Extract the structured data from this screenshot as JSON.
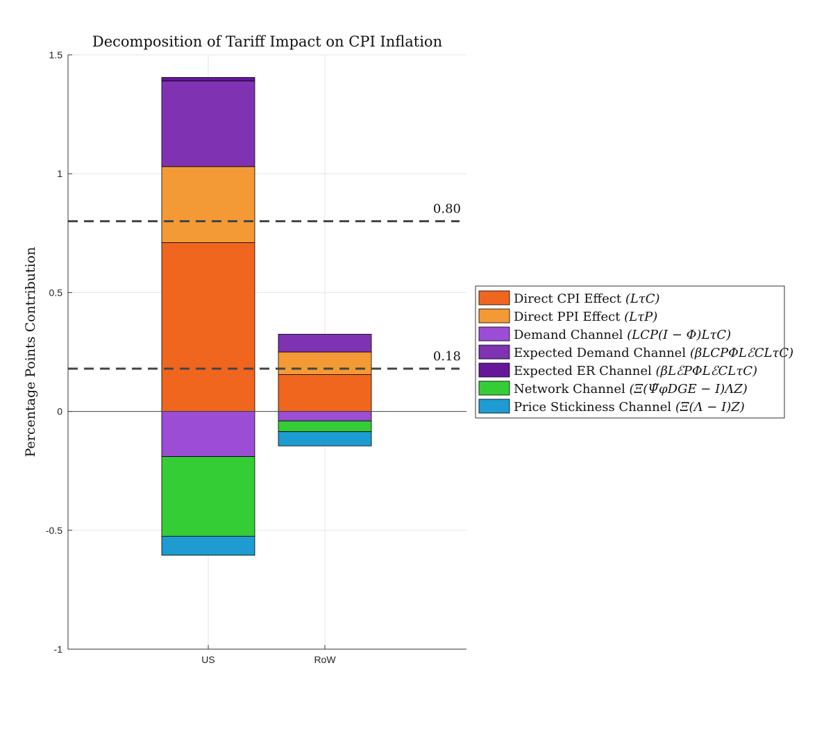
{
  "chart_data": {
    "type": "bar",
    "stacked": true,
    "title": "Decomposition of Tariff Impact on CPI Inflation",
    "xlabel": "",
    "ylabel": "Percentage Points Contribution",
    "categories": [
      "US",
      "RoW"
    ],
    "ylim": [
      -1,
      1.5
    ],
    "yticks": [
      -1,
      -0.5,
      0,
      0.5,
      1,
      1.5
    ],
    "ytick_labels": [
      "-1",
      "-0.5",
      "0",
      "0.5",
      "1",
      "1.5"
    ],
    "grid": true,
    "legend_position": "right",
    "series": [
      {
        "name": "Direct CPI Effect",
        "math": "(LτC)",
        "color": "#f0661f",
        "values": [
          0.71,
          0.155
        ]
      },
      {
        "name": "Direct PPI Effect",
        "math": "(LτP)",
        "color": "#f39a36",
        "values": [
          0.32,
          0.095
        ]
      },
      {
        "name": "Demand Channel",
        "math": "(LCP(I − Φ)LτC)",
        "color": "#9b4dd6",
        "values": [
          -0.19,
          -0.04
        ]
      },
      {
        "name": "Expected Demand Channel",
        "math": "(βLCPΦLℰCLτC)",
        "color": "#7f33b3",
        "values": [
          0.36,
          0.075
        ]
      },
      {
        "name": "Expected ER Channel",
        "math": "(βLℰPΦLℰCLτC)",
        "color": "#65169b",
        "values": [
          0.015,
          0.0
        ]
      },
      {
        "name": "Network Channel",
        "math": "(Ξ(Ψ̃φDGE − I)ΛZ)",
        "color": "#35cd35",
        "values": [
          -0.335,
          -0.045
        ]
      },
      {
        "name": "Price Stickiness Channel",
        "math": "(Ξ(Λ − I)Z)",
        "color": "#1e9bd0",
        "values": [
          -0.08,
          -0.06
        ]
      }
    ],
    "reference_lines": [
      {
        "value": 0.8,
        "label": "0.80"
      },
      {
        "value": 0.18,
        "label": "0.18"
      }
    ]
  }
}
